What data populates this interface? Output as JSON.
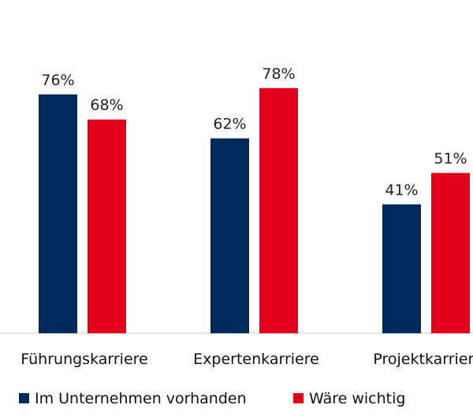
{
  "chart_data": {
    "type": "bar",
    "title": "",
    "xlabel": "",
    "ylabel": "",
    "ylim": [
      0,
      100
    ],
    "grid": false,
    "legend_position": "bottom-left",
    "categories": [
      "Führungskarriere",
      "Expertenkarriere",
      "Projektkarriere"
    ],
    "series": [
      {
        "name": "Im Unternehmen vorhanden",
        "color": "#002a5c",
        "values": [
          76,
          62,
          41
        ],
        "labels": [
          "76%",
          "62%",
          "41%"
        ]
      },
      {
        "name": "Wäre wichtig",
        "color": "#e2001a",
        "values": [
          68,
          78,
          51
        ],
        "labels": [
          "68%",
          "78%",
          "51%"
        ]
      }
    ]
  }
}
